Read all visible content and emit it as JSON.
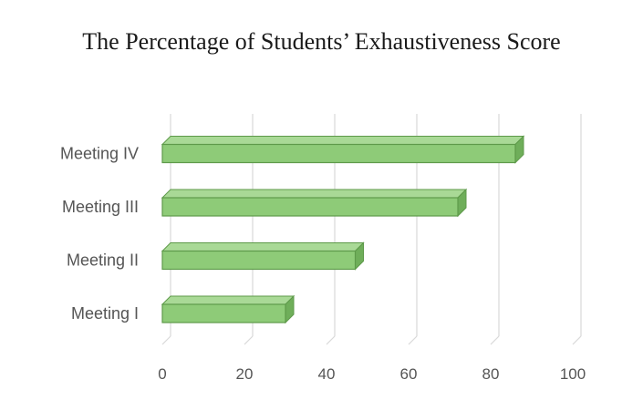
{
  "chart_data": {
    "type": "bar",
    "orientation": "horizontal",
    "style": "3d",
    "title": "The Percentage of Students’ Exhaustiveness Score",
    "xlabel": "",
    "ylabel": "",
    "categories": [
      "Meeting I",
      "Meeting II",
      "Meeting III",
      "Meeting IV"
    ],
    "values": [
      30,
      47,
      72,
      86
    ],
    "xlim": [
      0,
      100
    ],
    "ticks": [
      0,
      20,
      40,
      60,
      80,
      100
    ],
    "grid": true,
    "legend": "none",
    "bar_color": "#8ecb78",
    "bar_edge_color": "#5e9a4a"
  }
}
